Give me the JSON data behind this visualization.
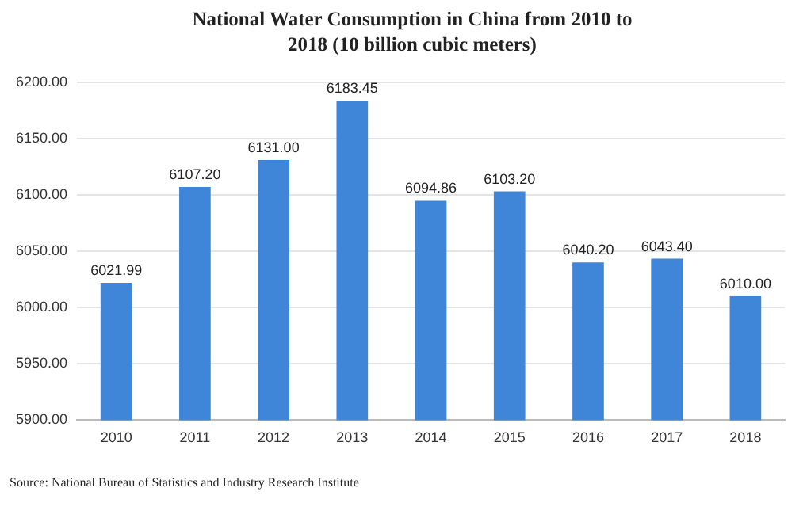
{
  "chart_data": {
    "type": "bar",
    "title": "National Water Consumption in China from 2010 to 2018 (10 billion cubic meters)",
    "categories": [
      "2010",
      "2011",
      "2012",
      "2013",
      "2014",
      "2015",
      "2016",
      "2017",
      "2018"
    ],
    "values": [
      6021.99,
      6107.2,
      6131,
      6183.45,
      6094.86,
      6103.2,
      6040.2,
      6043.4,
      6010
    ],
    "value_labels": [
      "6021.99",
      "6107.20",
      "6131.00",
      "6183.45",
      "6094.86",
      "6103.20",
      "6040.20",
      "6043.40",
      "6010.00"
    ],
    "color": "#3f86d9",
    "ylim": [
      5900,
      6200
    ],
    "yticks": [
      {
        "value": 5900,
        "label": "5900.00"
      },
      {
        "value": 5950,
        "label": "5950.00"
      },
      {
        "value": 6000,
        "label": "6000.00"
      },
      {
        "value": 6050,
        "label": "6050.00"
      },
      {
        "value": 6100,
        "label": "6100.00"
      },
      {
        "value": 6150,
        "label": "6150.00"
      },
      {
        "value": 6200,
        "label": "6200.00"
      }
    ],
    "grid": "y",
    "annotations": [
      "Source: National Bureau of Statistics and Industry Research Institute"
    ]
  }
}
